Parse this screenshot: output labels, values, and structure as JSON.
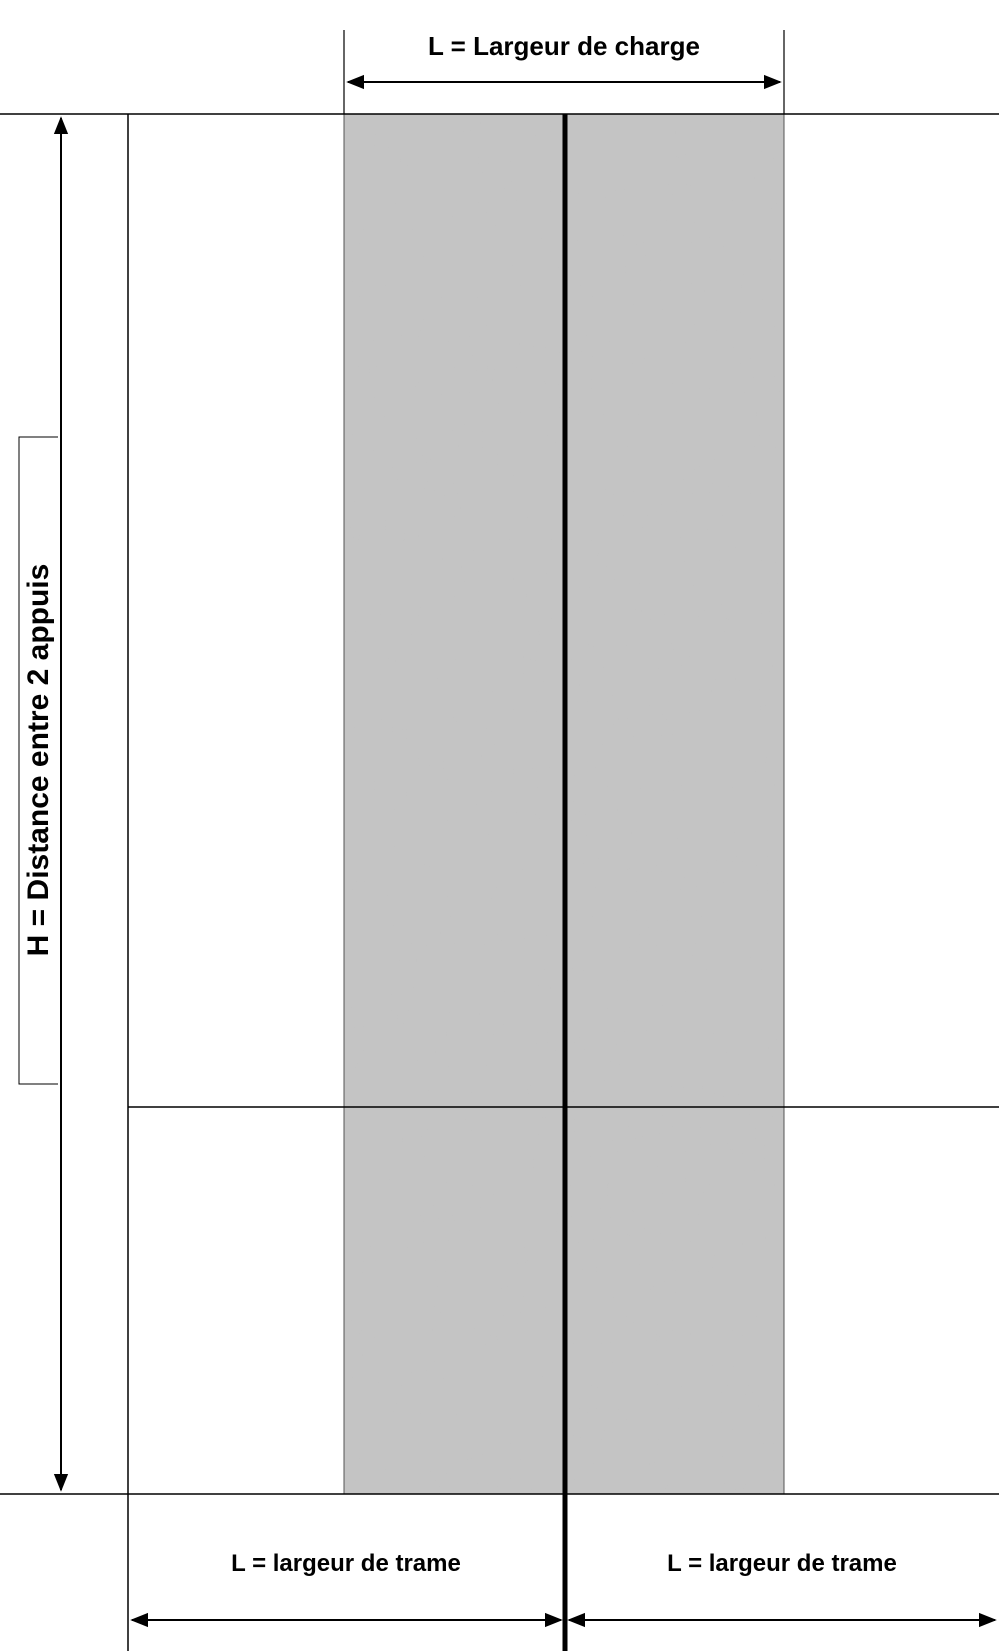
{
  "labels": {
    "top": "L = Largeur de charge",
    "left": "H = Distance entre 2 appuis",
    "bottom_left": "L = largeur de trame",
    "bottom_right": "L = largeur de trame"
  }
}
